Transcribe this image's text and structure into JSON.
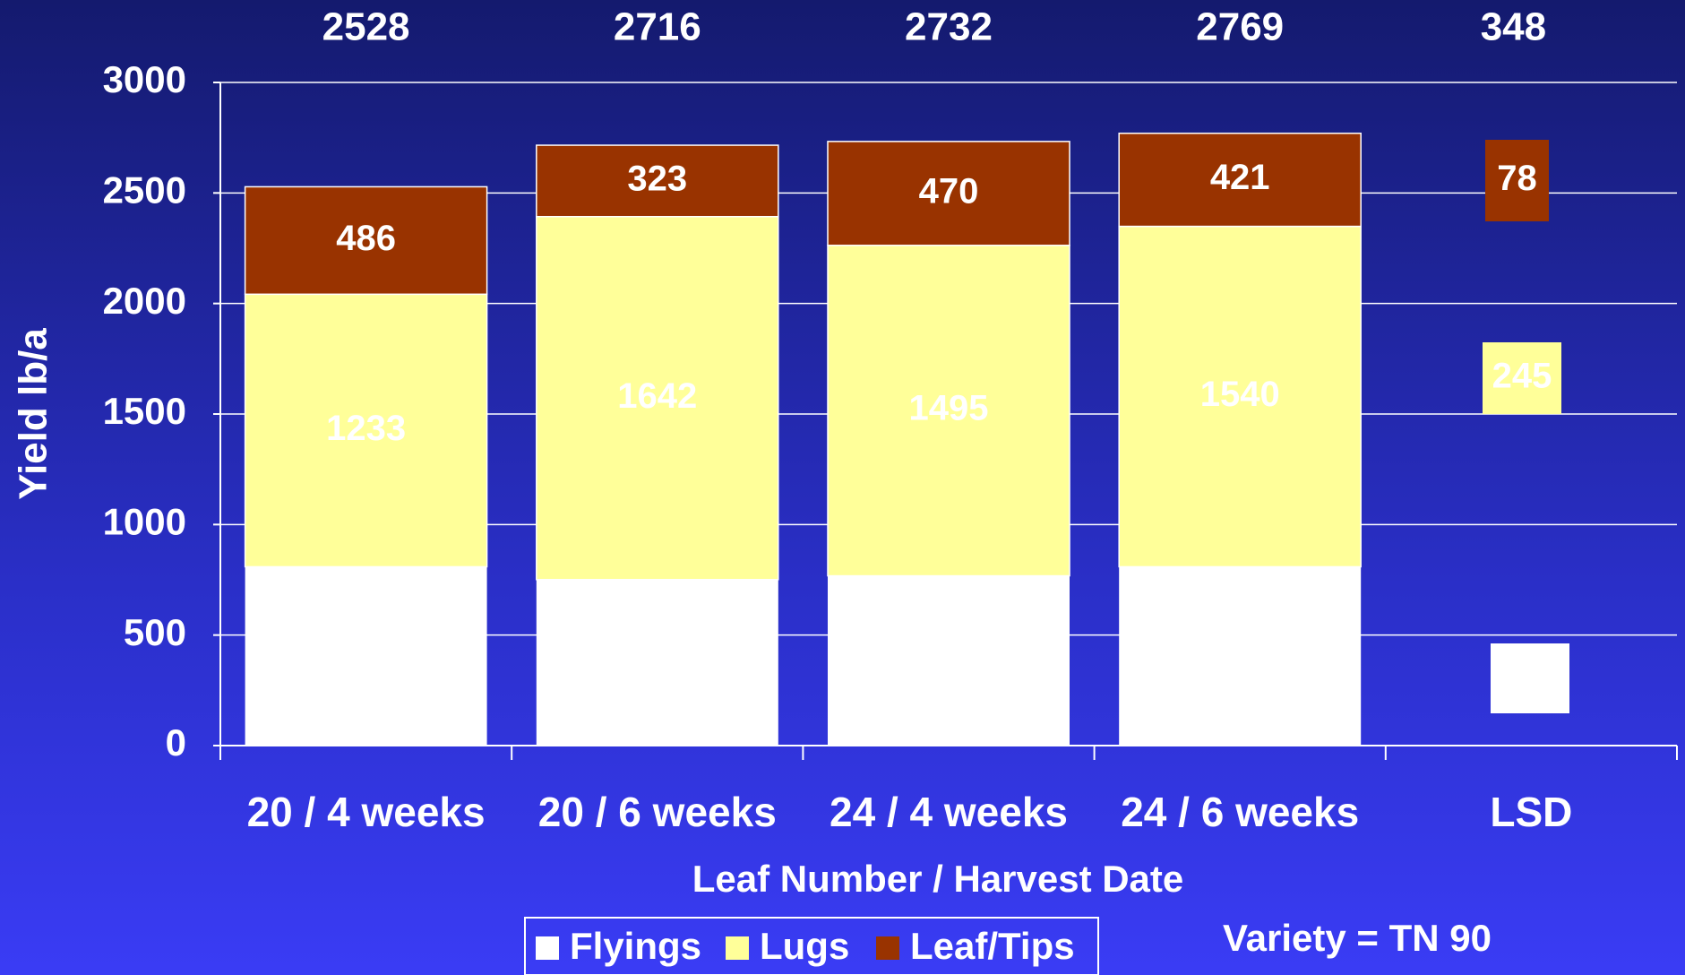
{
  "chart_data": {
    "type": "stacked_bar",
    "y_label": "Yield lb/a",
    "x_label": "Leaf Number / Harvest Date",
    "categories": [
      "20 / 4 weeks",
      "20 / 6 weeks",
      "24 / 4 weeks",
      "24 / 6 weeks"
    ],
    "totals": [
      2528,
      2716,
      2732,
      2769
    ],
    "series": [
      {
        "name": "Flyings",
        "color": "#ffffff",
        "values": [
          809,
          751,
          768,
          809
        ]
      },
      {
        "name": "Lugs",
        "color": "#ffff99",
        "values": [
          1233,
          1642,
          1495,
          1540
        ]
      },
      {
        "name": "Leaf/Tips",
        "color": "#993300",
        "values": [
          486,
          323,
          470,
          421
        ]
      }
    ],
    "lsd": {
      "label": "LSD",
      "total": 348,
      "values": [
        168,
        245,
        78
      ]
    },
    "ylim": [
      0,
      3000
    ],
    "yticks": [
      0,
      500,
      1000,
      1500,
      2000,
      2500,
      3000
    ],
    "grid": true,
    "note": "Variety = TN 90"
  }
}
